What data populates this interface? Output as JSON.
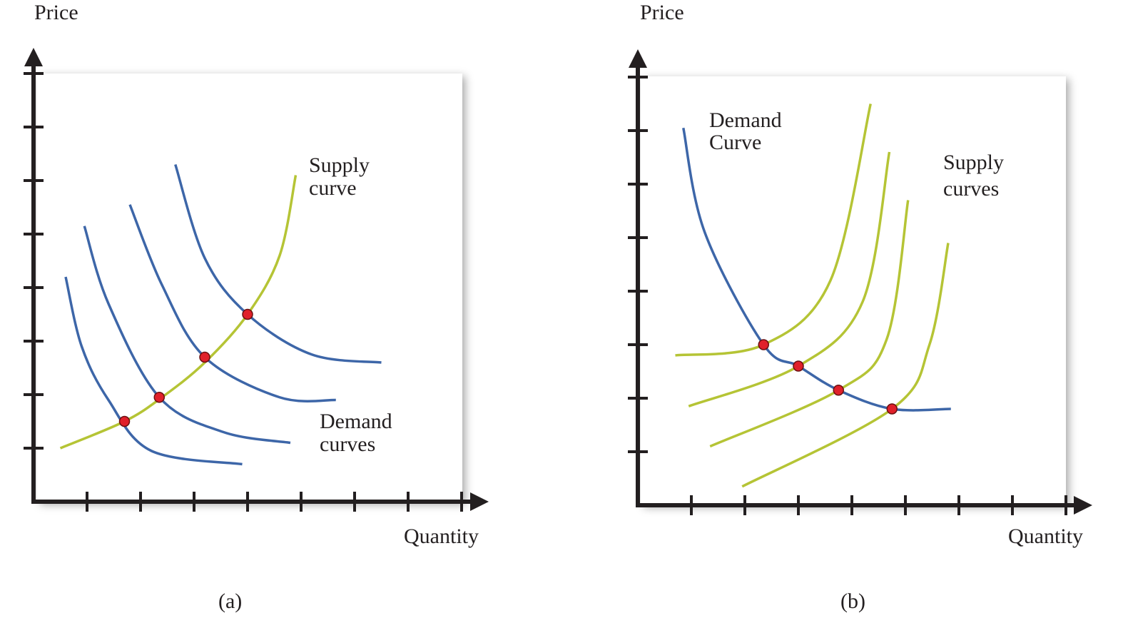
{
  "chart_data": [
    {
      "panel_label": "(a)",
      "type": "line",
      "ylabel": "Price",
      "xlabel": "Quantity",
      "xlim": [
        0,
        8
      ],
      "ylim": [
        0,
        8
      ],
      "ticks": 8,
      "grid": false,
      "annotations": [
        {
          "lines": [
            "Supply",
            "curve"
          ]
        },
        {
          "lines": [
            "Demand",
            "curves"
          ]
        }
      ],
      "series": [
        {
          "kind": "supply",
          "color": "#b5c435",
          "points": [
            [
              0.5,
              1.0
            ],
            [
              1.7,
              1.5
            ],
            [
              2.4,
              1.95
            ],
            [
              3.2,
              2.6
            ],
            [
              4.0,
              3.5
            ],
            [
              4.6,
              4.6
            ],
            [
              4.9,
              6.1
            ]
          ]
        },
        {
          "kind": "demand",
          "color": "#3d66a8",
          "points": [
            [
              0.6,
              4.2
            ],
            [
              0.9,
              2.9
            ],
            [
              1.4,
              1.9
            ],
            [
              2.2,
              0.95
            ],
            [
              3.9,
              0.7
            ]
          ]
        },
        {
          "kind": "demand",
          "color": "#3d66a8",
          "points": [
            [
              0.95,
              5.15
            ],
            [
              1.4,
              3.7
            ],
            [
              2.35,
              1.95
            ],
            [
              3.55,
              1.3
            ],
            [
              4.8,
              1.1
            ]
          ]
        },
        {
          "kind": "demand",
          "color": "#3d66a8",
          "points": [
            [
              1.8,
              5.55
            ],
            [
              2.4,
              4.05
            ],
            [
              3.2,
              2.7
            ],
            [
              4.6,
              1.95
            ],
            [
              5.65,
              1.9
            ]
          ]
        },
        {
          "kind": "demand",
          "color": "#3d66a8",
          "points": [
            [
              2.65,
              6.3
            ],
            [
              3.2,
              4.55
            ],
            [
              4.0,
              3.5
            ],
            [
              5.2,
              2.75
            ],
            [
              6.5,
              2.6
            ]
          ]
        }
      ],
      "equilibria": [
        [
          1.7,
          1.5
        ],
        [
          2.35,
          1.95
        ],
        [
          3.2,
          2.7
        ],
        [
          4.0,
          3.5
        ]
      ]
    },
    {
      "panel_label": "(b)",
      "type": "line",
      "ylabel": "Price",
      "xlabel": "Quantity",
      "xlim": [
        0,
        8
      ],
      "ylim": [
        0,
        8
      ],
      "ticks": 8,
      "grid": false,
      "annotations": [
        {
          "lines": [
            "Demand",
            "Curve"
          ]
        },
        {
          "lines": [
            "Supply",
            "curves"
          ]
        }
      ],
      "series": [
        {
          "kind": "demand",
          "color": "#3d66a8",
          "points": [
            [
              0.85,
              7.05
            ],
            [
              1.25,
              5.1
            ],
            [
              2.35,
              3.0
            ],
            [
              3.0,
              2.6
            ],
            [
              3.75,
              2.15
            ],
            [
              4.75,
              1.8
            ],
            [
              5.85,
              1.8
            ]
          ]
        },
        {
          "kind": "supply",
          "color": "#b5c435",
          "points": [
            [
              0.7,
              2.8
            ],
            [
              2.35,
              3.0
            ],
            [
              3.6,
              4.2
            ],
            [
              4.35,
              7.5
            ]
          ]
        },
        {
          "kind": "supply",
          "color": "#b5c435",
          "points": [
            [
              0.95,
              1.85
            ],
            [
              3.0,
              2.6
            ],
            [
              4.2,
              3.8
            ],
            [
              4.7,
              6.6
            ]
          ]
        },
        {
          "kind": "supply",
          "color": "#b5c435",
          "points": [
            [
              1.35,
              1.1
            ],
            [
              3.75,
              2.15
            ],
            [
              4.65,
              3.1
            ],
            [
              5.05,
              5.7
            ]
          ]
        },
        {
          "kind": "supply",
          "color": "#b5c435",
          "points": [
            [
              1.95,
              0.35
            ],
            [
              4.75,
              1.8
            ],
            [
              5.45,
              3.0
            ],
            [
              5.8,
              4.9
            ]
          ]
        }
      ],
      "equilibria": [
        [
          2.35,
          3.0
        ],
        [
          3.0,
          2.6
        ],
        [
          3.75,
          2.15
        ],
        [
          4.75,
          1.8
        ]
      ]
    }
  ]
}
